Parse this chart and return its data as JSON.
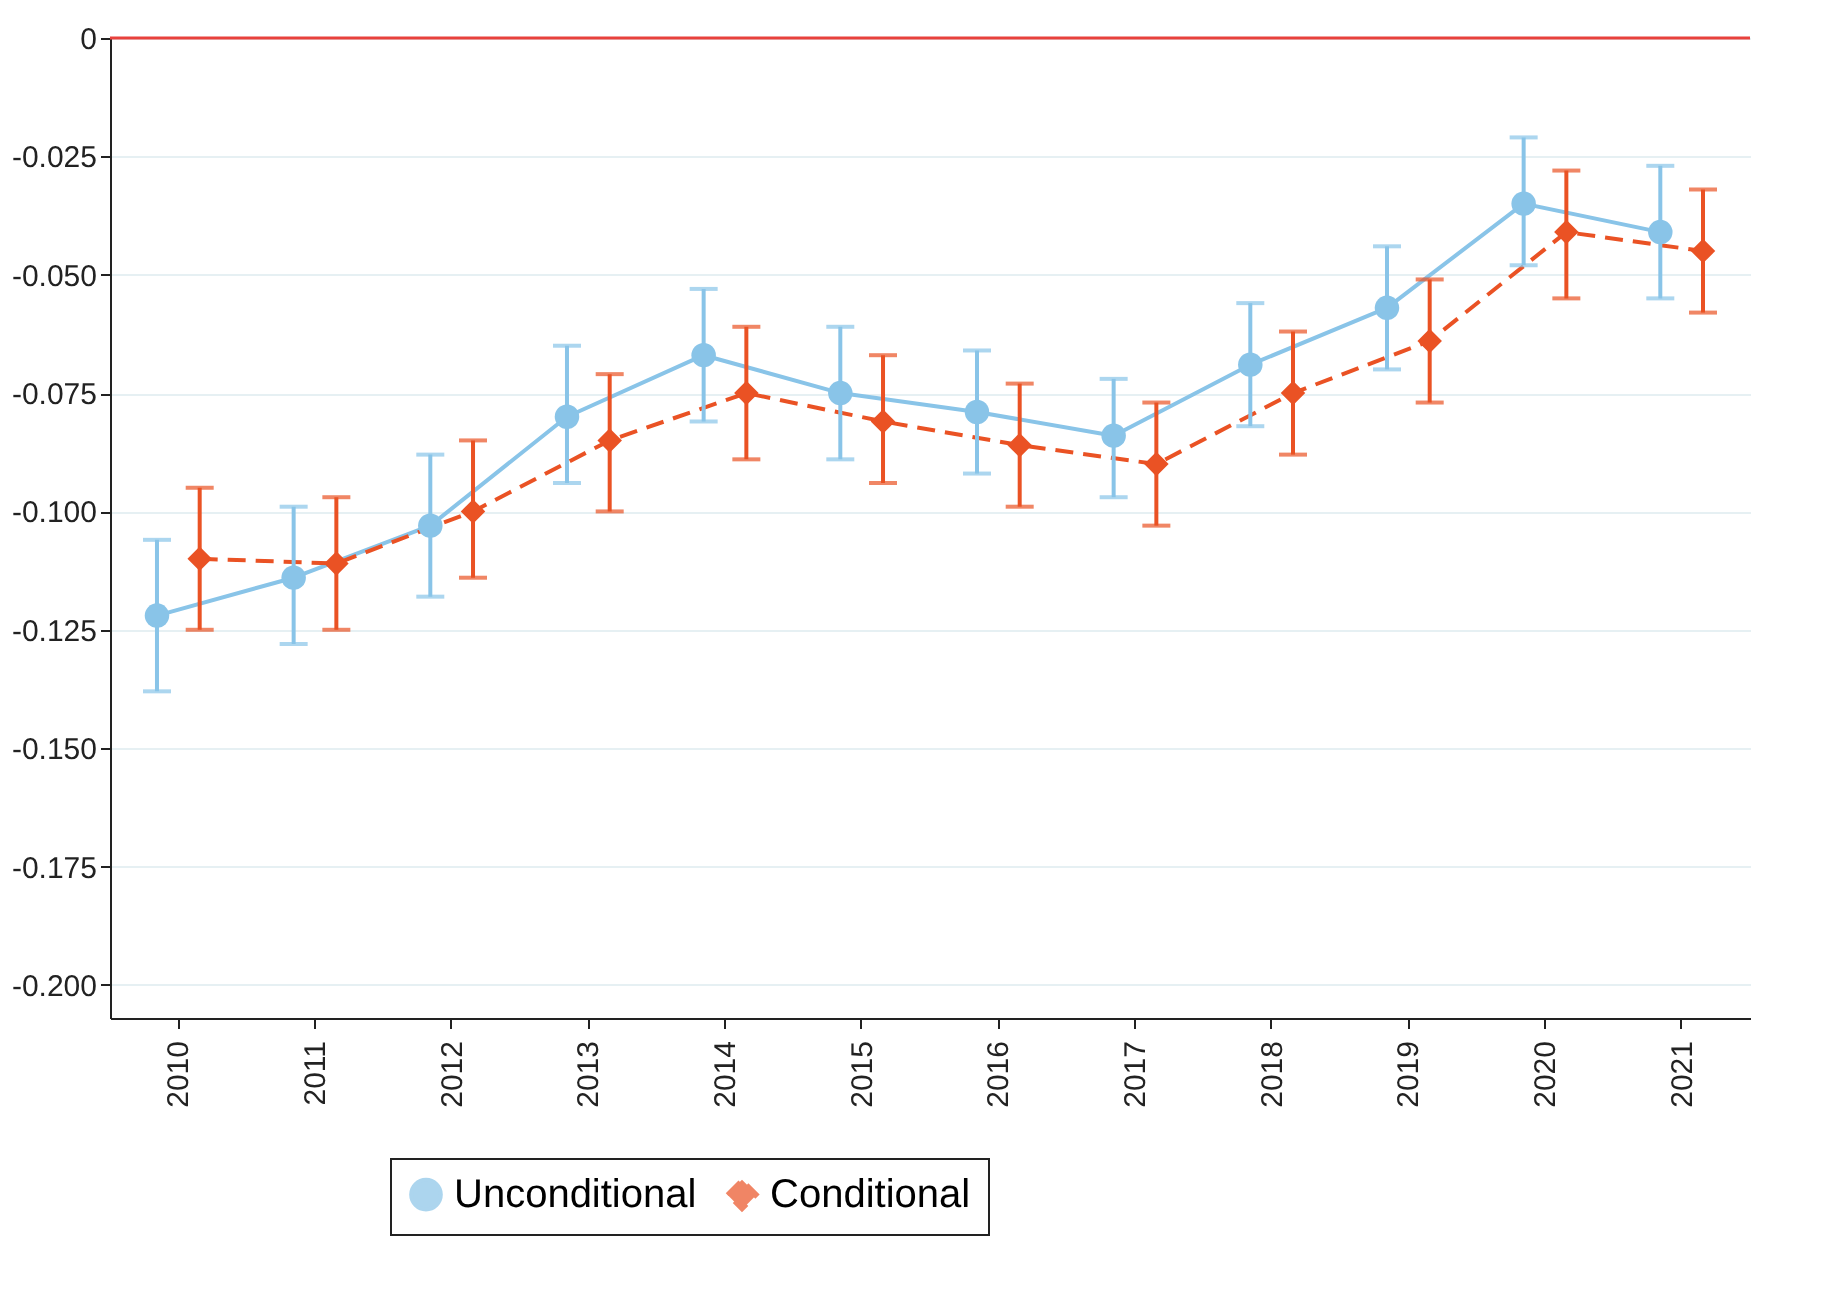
{
  "chart_data": {
    "type": "line",
    "categories": [
      "2010",
      "2011",
      "2012",
      "2013",
      "2014",
      "2015",
      "2016",
      "2017",
      "2018",
      "2019",
      "2020",
      "2021"
    ],
    "series": [
      {
        "name": "Unconditional",
        "color": "#89c4e8",
        "marker": "circle",
        "line_style": "solid",
        "values": [
          -0.122,
          -0.114,
          -0.103,
          -0.08,
          -0.067,
          -0.075,
          -0.079,
          -0.084,
          -0.069,
          -0.057,
          -0.035,
          -0.041
        ],
        "errors": [
          [
            -0.138,
            -0.106
          ],
          [
            -0.128,
            -0.099
          ],
          [
            -0.118,
            -0.088
          ],
          [
            -0.094,
            -0.065
          ],
          [
            -0.081,
            -0.053
          ],
          [
            -0.089,
            -0.061
          ],
          [
            -0.092,
            -0.066
          ],
          [
            -0.097,
            -0.072
          ],
          [
            -0.082,
            -0.056
          ],
          [
            -0.07,
            -0.044
          ],
          [
            -0.048,
            -0.021
          ],
          [
            -0.055,
            -0.027
          ]
        ]
      },
      {
        "name": "Conditional",
        "color": "#ea5224",
        "marker": "diamond",
        "line_style": "dashed",
        "values": [
          -0.11,
          -0.111,
          -0.1,
          -0.085,
          -0.075,
          -0.081,
          -0.086,
          -0.09,
          -0.075,
          -0.064,
          -0.041,
          -0.045
        ],
        "errors": [
          [
            -0.125,
            -0.095
          ],
          [
            -0.125,
            -0.097
          ],
          [
            -0.114,
            -0.085
          ],
          [
            -0.1,
            -0.071
          ],
          [
            -0.089,
            -0.061
          ],
          [
            -0.094,
            -0.067
          ],
          [
            -0.099,
            -0.073
          ],
          [
            -0.103,
            -0.077
          ],
          [
            -0.088,
            -0.062
          ],
          [
            -0.077,
            -0.051
          ],
          [
            -0.055,
            -0.028
          ],
          [
            -0.058,
            -0.032
          ]
        ]
      }
    ],
    "ylim": [
      -0.207,
      0
    ],
    "yticks": [
      0,
      -0.025,
      {
        "value": -0.05,
        "label": "-0.050"
      },
      -0.075,
      {
        "value": -0.1,
        "label": "-0.100"
      },
      -0.125,
      {
        "value": -0.15,
        "label": "-0.150"
      },
      -0.175,
      {
        "value": -0.2,
        "label": "-0.200"
      }
    ],
    "ref_lines": [
      {
        "axis": "y",
        "value": 0,
        "color": "#e8413c"
      }
    ],
    "grid": "y",
    "legend": "bottom"
  }
}
